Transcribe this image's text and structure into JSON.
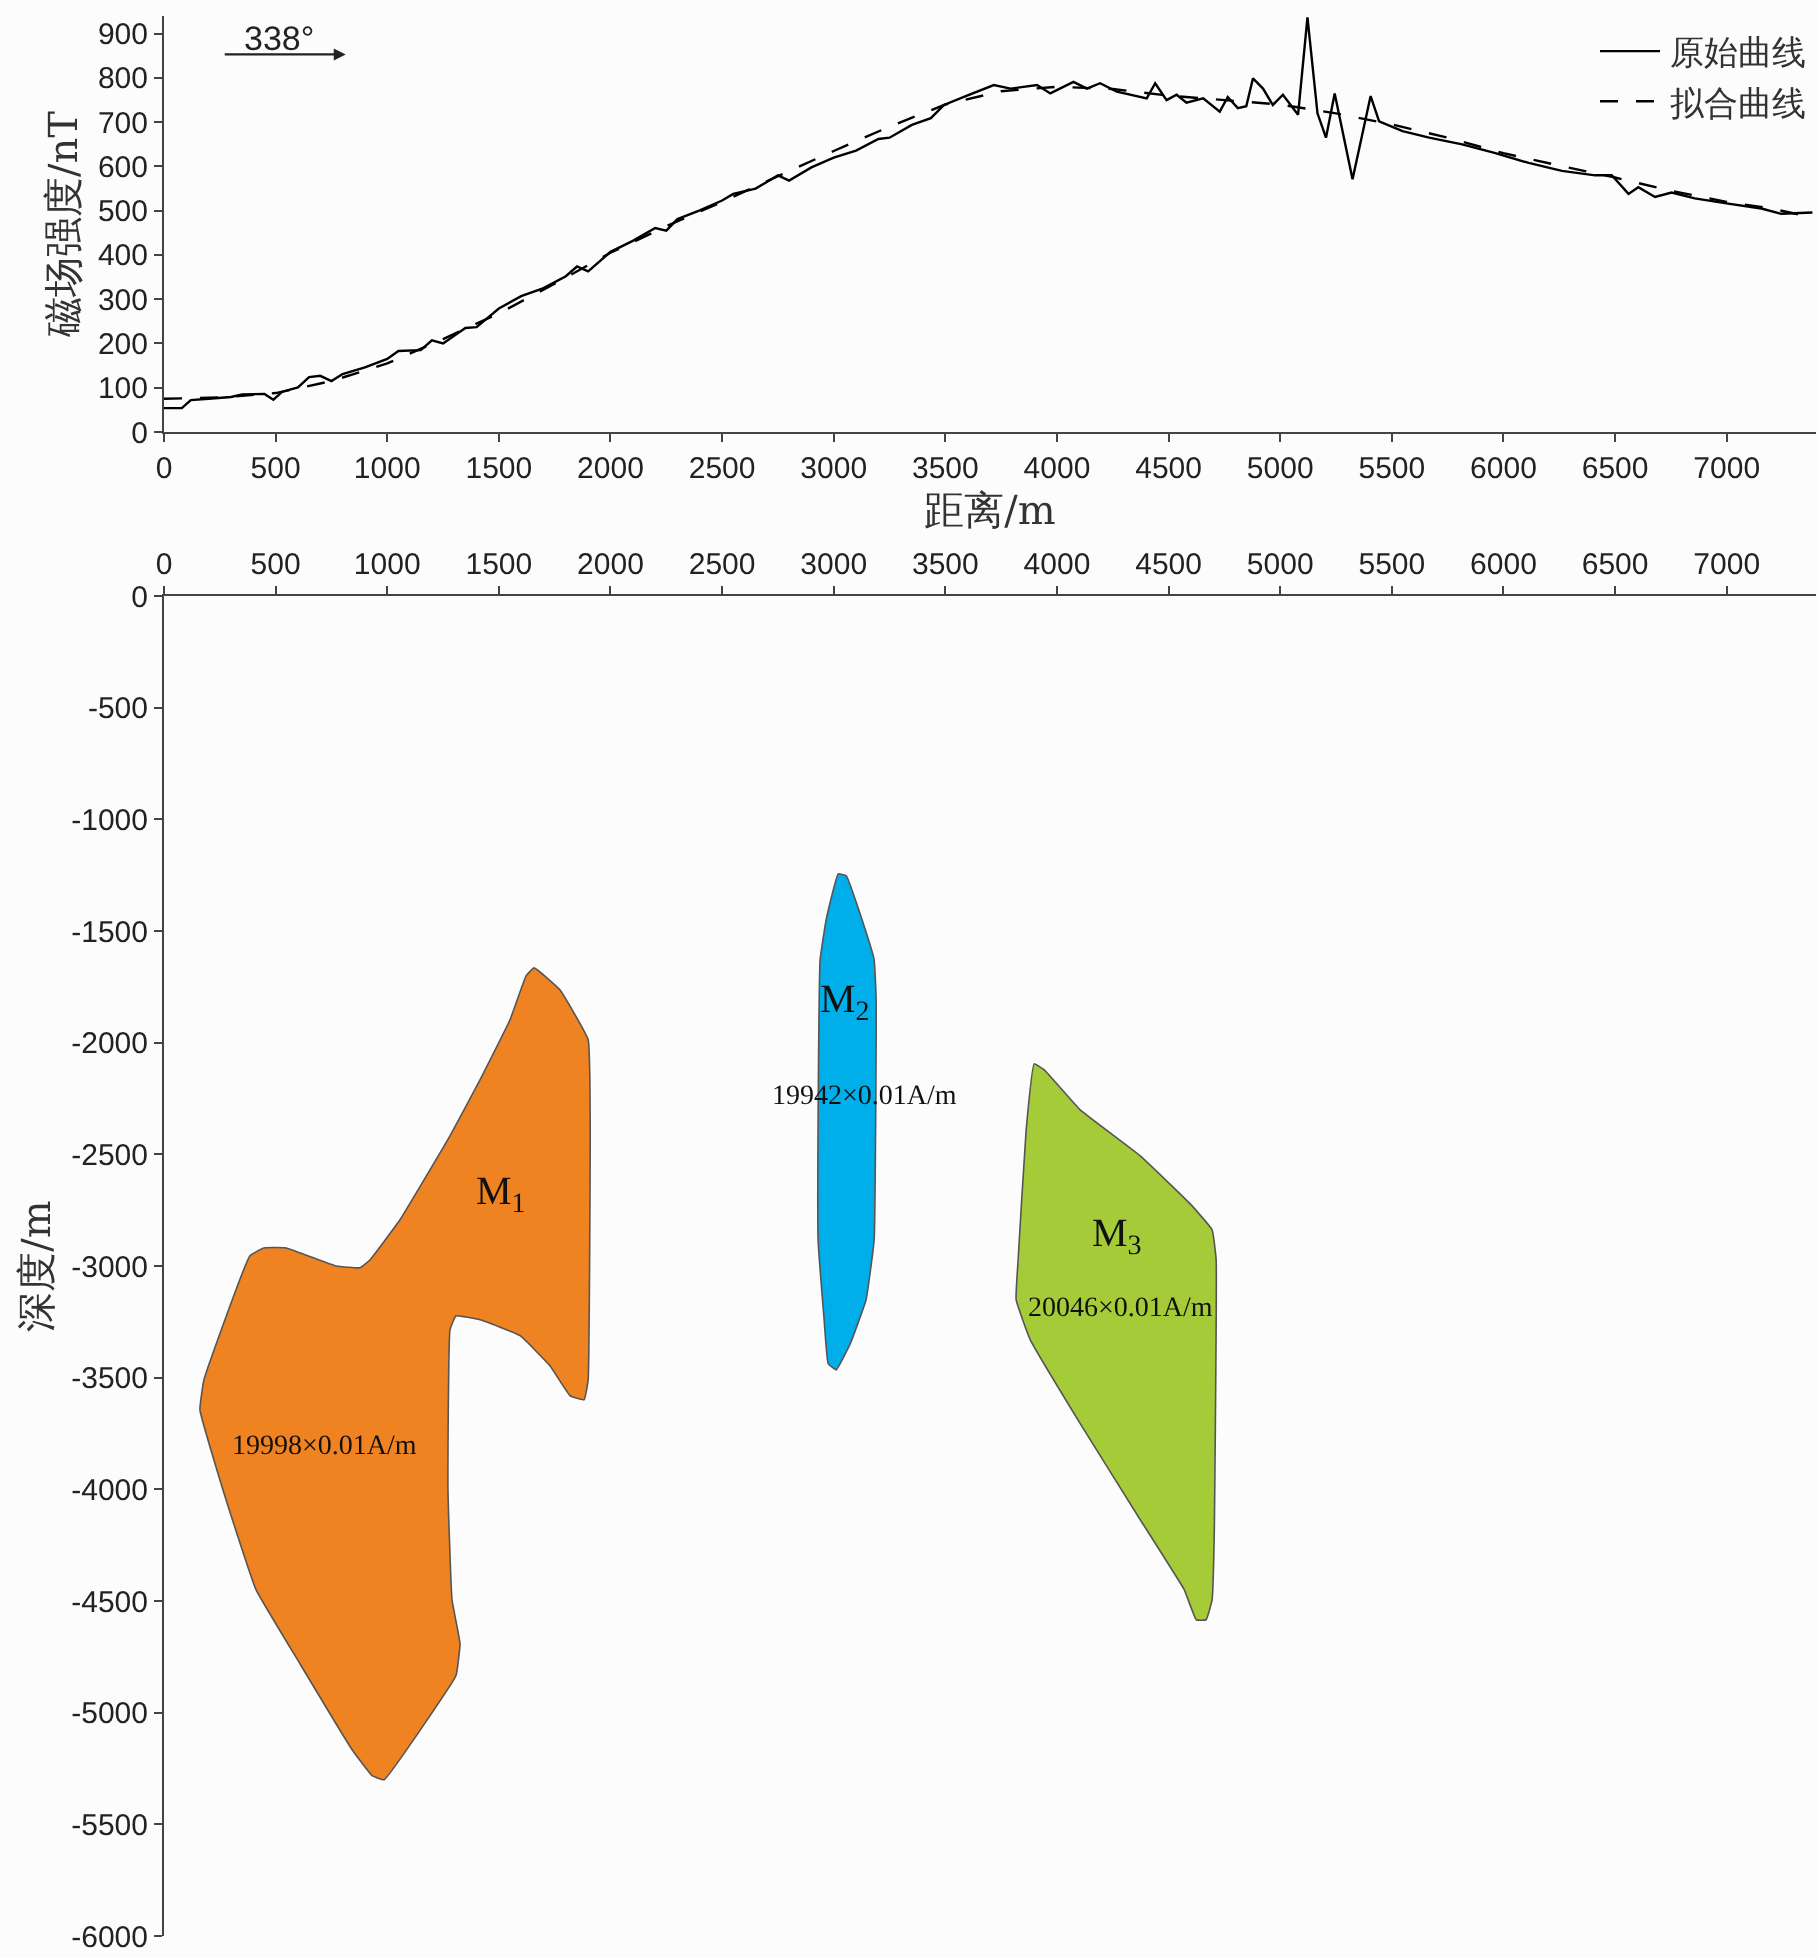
{
  "chart_data": [
    {
      "type": "line",
      "xlabel": "距离/m",
      "ylabel": "磁场强度/nT",
      "annotations": [
        "338°"
      ],
      "legend": "top right",
      "xlim": [
        0,
        7400
      ],
      "xticks": [
        0,
        500,
        1000,
        1500,
        2000,
        2500,
        3000,
        3500,
        4000,
        4500,
        5000,
        5500,
        6000,
        6500,
        7000
      ],
      "ylim": [
        0,
        940
      ],
      "yticks": [
        0,
        100,
        200,
        300,
        400,
        500,
        600,
        700,
        800,
        900
      ],
      "series": [
        {
          "name": "原始曲线",
          "color": "#000000",
          "line_style": "solid",
          "x": [
            0,
            80,
            120,
            200,
            300,
            350,
            450,
            490,
            530,
            600,
            650,
            700,
            750,
            800,
            900,
            1000,
            1050,
            1150,
            1200,
            1250,
            1350,
            1400,
            1500,
            1600,
            1700,
            1800,
            1850,
            1900,
            2000,
            2100,
            2200,
            2250,
            2300,
            2400,
            2500,
            2550,
            2650,
            2750,
            2800,
            2900,
            3000,
            3100,
            3200,
            3250,
            3350,
            3435,
            3494,
            3583,
            3717,
            3792,
            3911,
            3970,
            4074,
            4134,
            4193,
            4268,
            4402,
            4440,
            4491,
            4536,
            4580,
            4655,
            4729,
            4765,
            4810,
            4848,
            4878,
            4923,
            4967,
            5012,
            5080,
            5122,
            5167,
            5205,
            5244,
            5324,
            5405,
            5443,
            5548,
            5667,
            5815,
            5964,
            6113,
            6262,
            6411,
            6485,
            6560,
            6604,
            6679,
            6753,
            6857,
            7006,
            7155,
            7244,
            7384
          ],
          "values": [
            54,
            54,
            72,
            75,
            79,
            85,
            86,
            73,
            91,
            101,
            124,
            127,
            115,
            131,
            146,
            165,
            183,
            185,
            207,
            200,
            235,
            237,
            279,
            307,
            325,
            352,
            374,
            363,
            407,
            432,
            461,
            455,
            481,
            501,
            523,
            538,
            550,
            580,
            568,
            598,
            620,
            636,
            662,
            665,
            694,
            709,
            739,
            757,
            784,
            776,
            784,
            765,
            791,
            776,
            788,
            769,
            754,
            788,
            750,
            762,
            744,
            754,
            724,
            757,
            732,
            736,
            799,
            776,
            739,
            762,
            717,
            937,
            720,
            665,
            765,
            571,
            759,
            702,
            680,
            665,
            650,
            630,
            608,
            590,
            580,
            580,
            538,
            553,
            531,
            541,
            528,
            516,
            505,
            493,
            496
          ]
        },
        {
          "name": "拟合曲线",
          "color": "#000000",
          "line_style": "dashed",
          "x": [
            0,
            250,
            500,
            750,
            1000,
            1250,
            1500,
            1750,
            2000,
            2250,
            2500,
            2750,
            3000,
            3250,
            3500,
            3750,
            4000,
            4250,
            4500,
            4750,
            5000,
            5250,
            5500,
            5750,
            6000,
            6250,
            6500,
            6750,
            7000,
            7200,
            7384
          ],
          "values": [
            75,
            78,
            88,
            115,
            155,
            210,
            268,
            335,
            405,
            465,
            520,
            578,
            635,
            690,
            740,
            770,
            780,
            775,
            760,
            750,
            740,
            720,
            695,
            665,
            630,
            602,
            575,
            545,
            520,
            505,
            485
          ]
        }
      ]
    },
    {
      "type": "area",
      "ylabel": "深度/m",
      "xlim": [
        0,
        7400
      ],
      "xticks": [
        0,
        500,
        1000,
        1500,
        2000,
        2500,
        3000,
        3500,
        4000,
        4500,
        5000,
        5500,
        6000,
        6500,
        7000
      ],
      "ylim": [
        -6000,
        0
      ],
      "yticks": [
        0,
        -500,
        -1000,
        -1500,
        -2000,
        -2500,
        -3000,
        -3500,
        -4000,
        -4500,
        -5000,
        -5500,
        -6000
      ],
      "annotations": [
        "M$_{1}$",
        "19998×0.01A/m",
        "M$_{2}$",
        "19942×0.01A/m",
        "M$_{3}$",
        "20046×0.01A/m"
      ],
      "series": [
        {
          "color": "#f08321",
          "x": [
            1658,
            1774,
            1900,
            1909,
            1900,
            1882,
            1819,
            1729,
            1595,
            1416,
            1308,
            1281,
            1272,
            1290,
            1326,
            1308,
            1192,
            986,
            932,
            842,
            609,
            412,
            278,
            161,
            179,
            385,
            448,
            547,
            771,
            878,
            923,
            1057,
            1281,
            1416,
            1550,
            1622,
            1658
          ],
          "values": [
            -1665,
            -1764,
            -1987,
            -2346,
            -3509,
            -3599,
            -3581,
            -3447,
            -3312,
            -3241,
            -3223,
            -3286,
            -4002,
            -4494,
            -4691,
            -4834,
            -5013,
            -5300,
            -5282,
            -5165,
            -4781,
            -4449,
            -4047,
            -3644,
            -3509,
            -2954,
            -2919,
            -2919,
            -3000,
            -3008,
            -2972,
            -2793,
            -2417,
            -2166,
            -1898,
            -1701,
            -1665
          ]
        },
        {
          "color": "#00aeea",
          "x": [
            3020,
            3056,
            3127,
            3181,
            3190,
            3181,
            3145,
            3074,
            3011,
            2975,
            2957,
            2930,
            2930,
            2939,
            2966,
            3020
          ],
          "values": [
            -1244,
            -1253,
            -1450,
            -1629,
            -1808,
            -2883,
            -3151,
            -3348,
            -3465,
            -3437,
            -3241,
            -2883,
            -2346,
            -1629,
            -1450,
            -1244
          ]
        },
        {
          "color": "#a5cb39",
          "x": [
            3898,
            3943,
            4104,
            4373,
            4597,
            4695,
            4713,
            4704,
            4695,
            4668,
            4624,
            4570,
            4373,
            4104,
            3880,
            3817,
            3826,
            3862,
            3898
          ],
          "values": [
            -2095,
            -2122,
            -2301,
            -2507,
            -2722,
            -2838,
            -2972,
            -4226,
            -4494,
            -4584,
            -4584,
            -4449,
            -4136,
            -3706,
            -3330,
            -3151,
            -2972,
            -2390,
            -2095
          ]
        }
      ]
    }
  ]
}
